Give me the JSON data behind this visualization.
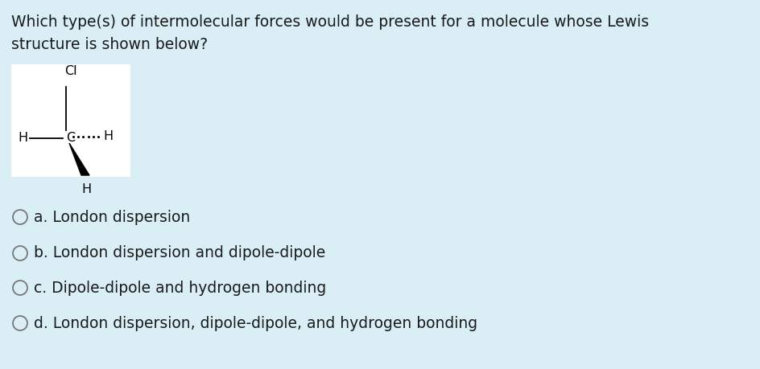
{
  "background_color": "#daeef6",
  "question_line1": "Which type(s) of intermolecular forces would be present for a molecule whose Lewis",
  "question_line2": "structure is shown below?",
  "question_fontsize": 13.5,
  "question_color": "#222222",
  "options": [
    "a. London dispersion",
    "b. London dispersion and dipole-dipole",
    "c. Dipole-dipole and hydrogen bonding",
    "d. London dispersion, dipole-dipole, and hydrogen bonding"
  ],
  "option_fontsize": 13.5,
  "lewis_box_color": "white",
  "text_color": "#1a1a1a",
  "circle_color": "#777777",
  "lewis_font": 11.5
}
